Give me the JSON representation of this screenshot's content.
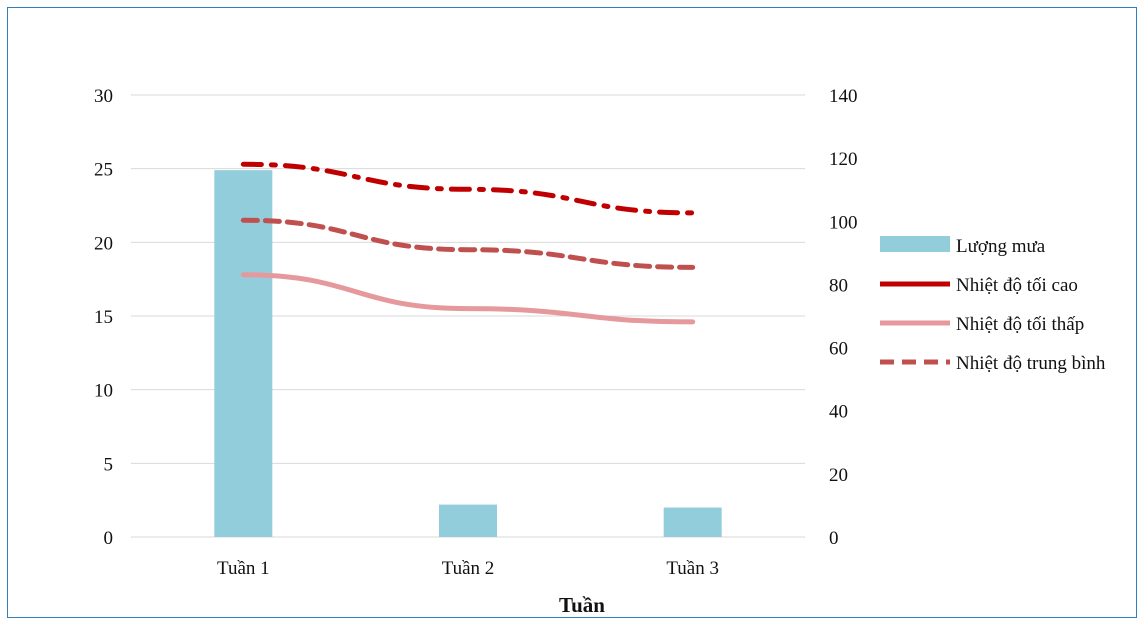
{
  "chart_data": {
    "type": "bar",
    "categories": [
      "Tuần 1",
      "Tuần 2",
      "Tuần 3"
    ],
    "xlabel": "Tuần",
    "ylabel": "",
    "ylim": [
      0,
      30
    ],
    "yticks": [
      0,
      5,
      10,
      15,
      20,
      25,
      30
    ],
    "y2lim": [
      0,
      140
    ],
    "y2ticks": [
      0,
      20,
      40,
      60,
      80,
      100,
      120,
      140
    ],
    "grid": true,
    "legend_position": "right",
    "series": [
      {
        "name": "Lượng mưa",
        "type": "bar",
        "axis": "left",
        "values": [
          24.9,
          2.2,
          2.0
        ],
        "color": "#92cddc"
      },
      {
        "name": "Nhiệt độ tối cao",
        "type": "line",
        "axis": "right",
        "style": "dash-dot",
        "values": [
          25.3,
          23.6,
          22.0
        ],
        "color": "#c00000"
      },
      {
        "name": "Nhiệt độ tối thấp",
        "type": "line",
        "axis": "right",
        "style": "solid",
        "values": [
          17.8,
          15.5,
          14.6
        ],
        "color": "#e6999c"
      },
      {
        "name": "Nhiệt độ trung bình",
        "type": "line",
        "axis": "right",
        "style": "dash",
        "values": [
          21.5,
          19.5,
          18.3
        ],
        "color": "#c0504d"
      }
    ]
  }
}
